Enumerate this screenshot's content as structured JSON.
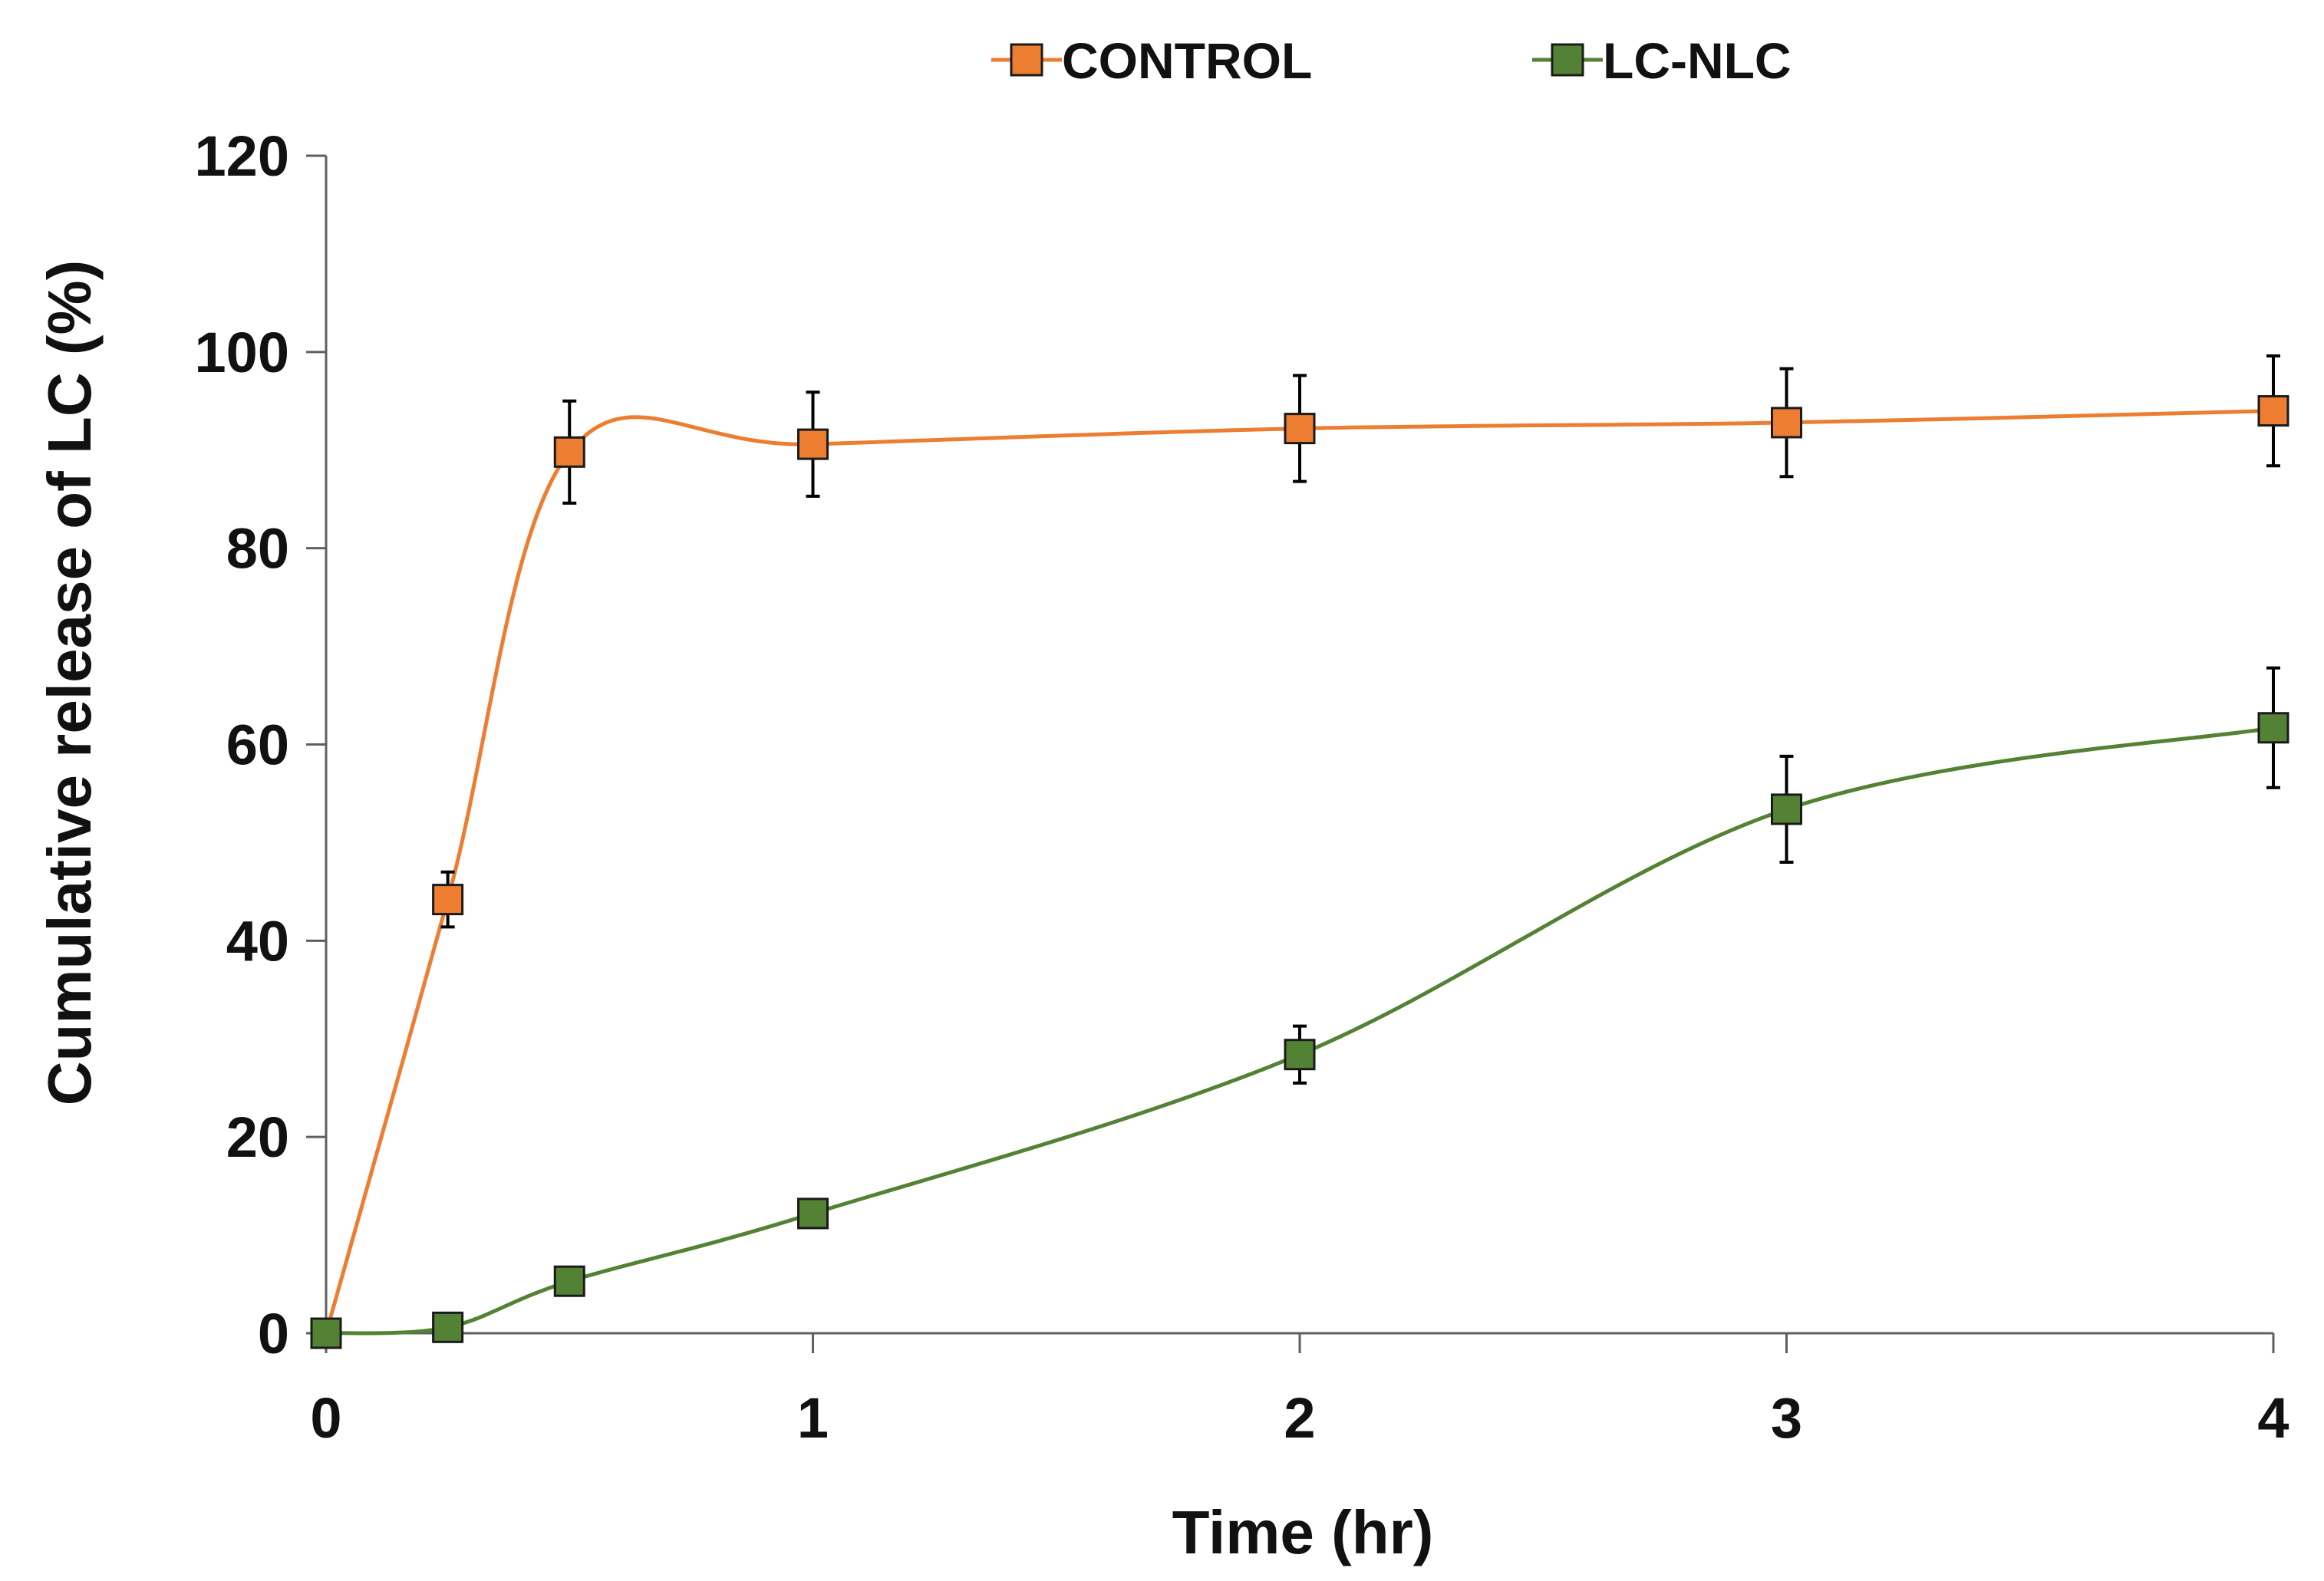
{
  "chart_data": {
    "type": "line",
    "title": "",
    "xlabel": "Time (hr)",
    "ylabel": "Cumulative  release of LC (%)",
    "xlim": [
      0,
      4
    ],
    "ylim": [
      0,
      120
    ],
    "xticks": [
      0,
      1,
      2,
      3,
      4
    ],
    "yticks": [
      0,
      20,
      40,
      60,
      80,
      100,
      120
    ],
    "grid": false,
    "legend_position": "top-center",
    "smooth": true,
    "series": [
      {
        "name": "CONTROL",
        "color": "#ED7D31",
        "marker": "square",
        "x": [
          0,
          0.25,
          0.5,
          1,
          2,
          3,
          4
        ],
        "y": [
          0,
          44.2,
          89.8,
          90.6,
          92.2,
          92.8,
          94.0
        ],
        "error": [
          0,
          2.8,
          5.2,
          5.3,
          5.4,
          5.5,
          5.6
        ]
      },
      {
        "name": "LC-NLC",
        "color": "#548235",
        "marker": "square",
        "x": [
          0,
          0.25,
          0.5,
          1,
          2,
          3,
          4
        ],
        "y": [
          0,
          0.6,
          5.3,
          12.2,
          28.4,
          53.4,
          61.7
        ],
        "error": [
          0,
          0,
          0,
          0,
          2.9,
          5.4,
          6.1
        ]
      }
    ]
  }
}
